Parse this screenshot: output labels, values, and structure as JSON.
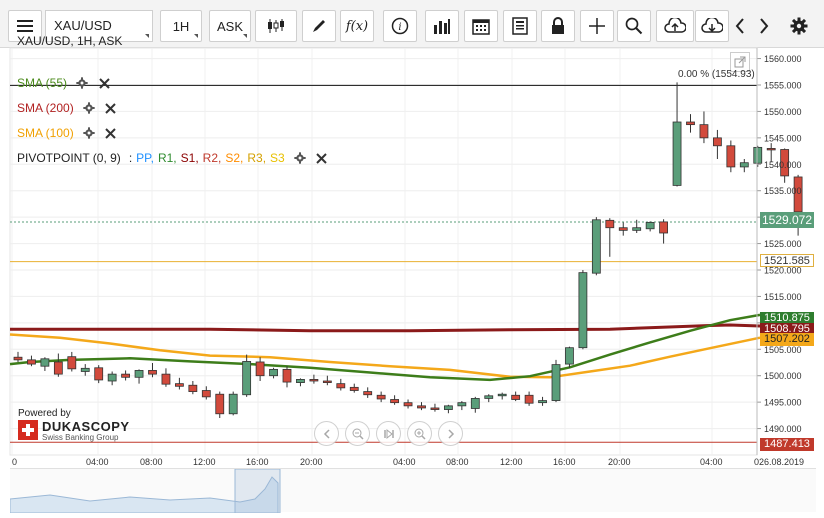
{
  "toolbar": {
    "symbol": "XAU/USD",
    "timeframe": "1H",
    "price_side": "ASK"
  },
  "chart_title": "XAU/USD, 1H, ASK",
  "indicators": [
    {
      "label": "SMA (55)",
      "color": "#4a8a1a"
    },
    {
      "label": "SMA (200)",
      "color": "#b22222"
    },
    {
      "label": "SMA (100)",
      "color": "#f0a000"
    }
  ],
  "pivot": {
    "label": "PIVOTPOINT (0, 9)",
    "sep": ":",
    "levels": [
      {
        "t": "PP",
        "c": "#1e90ff"
      },
      {
        "t": "R1",
        "c": "#2e8b2e"
      },
      {
        "t": "S1",
        "c": "#8b0000"
      },
      {
        "t": "R2",
        "c": "#c0392b"
      },
      {
        "t": "S2",
        "c": "#ff8c00"
      },
      {
        "t": "R3",
        "c": "#d4a000"
      },
      {
        "t": "S3",
        "c": "#e8c000"
      }
    ]
  },
  "annotation": "0.00 % (1554.93)",
  "price_labels": {
    "current": "1529.072",
    "pivot": "1521.585",
    "sma55": "1510.875",
    "sma200": "1508.795",
    "sma100": "1507.202",
    "low": "1487.413"
  },
  "branding": {
    "powered": "Powered by",
    "name": "DUKASCOPY",
    "sub": "Swiss Banking Group"
  },
  "chart_data": {
    "type": "candlestick",
    "title": "XAU/USD, 1H, ASK",
    "ylim": [
      1485,
      1562
    ],
    "yticks": [
      "1560.000",
      "1555.000",
      "1550.000",
      "1545.000",
      "1540.000",
      "1535.000",
      "1530.000",
      "1525.000",
      "1520.000",
      "1515.000",
      "1510.000",
      "1505.000",
      "1500.000",
      "1495.000",
      "1490.000"
    ],
    "x_ticks": [
      "0",
      "04:00",
      "08:00",
      "12:00",
      "16:00",
      "20:00",
      "04:00",
      "08:00",
      "12:00",
      "16:00",
      "20:00",
      "04:00",
      "026.08.2019"
    ],
    "candles": [
      [
        1503.5,
        1504.5,
        1502.6,
        1503.0
      ],
      [
        1503.0,
        1503.8,
        1501.8,
        1502.2
      ],
      [
        1501.8,
        1503.5,
        1500.9,
        1503.2
      ],
      [
        1502.6,
        1504.2,
        1499.8,
        1500.3
      ],
      [
        1503.6,
        1504.5,
        1500.8,
        1501.3
      ],
      [
        1500.8,
        1502.2,
        1500.0,
        1501.4
      ],
      [
        1501.5,
        1502.0,
        1498.6,
        1499.2
      ],
      [
        1499.0,
        1500.8,
        1498.2,
        1500.3
      ],
      [
        1500.3,
        1501.0,
        1499.1,
        1499.7
      ],
      [
        1499.7,
        1501.2,
        1498.5,
        1501.0
      ],
      [
        1501.0,
        1502.4,
        1499.7,
        1500.3
      ],
      [
        1500.3,
        1501.4,
        1497.9,
        1498.4
      ],
      [
        1498.5,
        1499.6,
        1497.4,
        1498.0
      ],
      [
        1498.2,
        1499.0,
        1496.5,
        1497.0
      ],
      [
        1497.2,
        1498.0,
        1495.5,
        1496.0
      ],
      [
        1496.5,
        1497.0,
        1492.0,
        1492.8
      ],
      [
        1492.8,
        1497.0,
        1492.5,
        1496.5
      ],
      [
        1496.4,
        1504.0,
        1496.0,
        1502.7
      ],
      [
        1502.6,
        1503.5,
        1499.0,
        1500.0
      ],
      [
        1500.0,
        1501.5,
        1499.5,
        1501.2
      ],
      [
        1501.2,
        1501.8,
        1497.8,
        1498.8
      ],
      [
        1498.7,
        1499.5,
        1498.0,
        1499.3
      ],
      [
        1499.3,
        1500.2,
        1498.5,
        1499.0
      ],
      [
        1499.0,
        1500.0,
        1498.2,
        1498.7
      ],
      [
        1498.5,
        1499.4,
        1497.2,
        1497.7
      ],
      [
        1497.8,
        1498.5,
        1496.8,
        1497.2
      ],
      [
        1497.0,
        1497.8,
        1495.8,
        1496.4
      ],
      [
        1496.3,
        1497.0,
        1495.0,
        1495.6
      ],
      [
        1495.5,
        1496.3,
        1494.5,
        1494.9
      ],
      [
        1494.9,
        1495.5,
        1493.8,
        1494.3
      ],
      [
        1494.3,
        1495.0,
        1493.5,
        1493.9
      ],
      [
        1493.9,
        1494.7,
        1493.2,
        1493.6
      ],
      [
        1493.6,
        1494.5,
        1492.9,
        1494.3
      ],
      [
        1494.3,
        1495.2,
        1493.5,
        1494.9
      ],
      [
        1493.8,
        1496.0,
        1493.0,
        1495.7
      ],
      [
        1495.7,
        1496.5,
        1495.0,
        1496.2
      ],
      [
        1496.2,
        1496.8,
        1495.5,
        1496.5
      ],
      [
        1496.3,
        1497.0,
        1495.2,
        1495.5
      ],
      [
        1496.3,
        1497.0,
        1494.3,
        1494.8
      ],
      [
        1494.9,
        1496.0,
        1494.3,
        1495.3
      ],
      [
        1495.3,
        1503.0,
        1495.0,
        1502.1
      ],
      [
        1502.2,
        1505.5,
        1501.5,
        1505.3
      ],
      [
        1505.3,
        1520.0,
        1505.0,
        1519.5
      ],
      [
        1519.4,
        1530.0,
        1519.0,
        1529.5
      ],
      [
        1529.4,
        1529.8,
        1522.5,
        1528.0
      ],
      [
        1528.0,
        1529.0,
        1526.5,
        1527.5
      ],
      [
        1527.5,
        1529.5,
        1527.0,
        1528.0
      ],
      [
        1527.8,
        1529.2,
        1527.3,
        1529.0
      ],
      [
        1529.1,
        1529.6,
        1525.0,
        1527.0
      ],
      [
        1536.0,
        1555.5,
        1535.8,
        1548.0
      ],
      [
        1548.0,
        1549.5,
        1546.0,
        1547.5
      ],
      [
        1547.5,
        1550.0,
        1544.0,
        1545.0
      ],
      [
        1545.0,
        1546.5,
        1541.0,
        1543.5
      ],
      [
        1543.5,
        1544.5,
        1538.5,
        1539.5
      ],
      [
        1539.5,
        1541.0,
        1538.5,
        1540.3
      ],
      [
        1540.2,
        1543.5,
        1539.5,
        1543.2
      ],
      [
        1543.0,
        1544.0,
        1540.5,
        1542.8
      ],
      [
        1542.8,
        1543.0,
        1536.5,
        1537.8
      ],
      [
        1537.6,
        1538.0,
        1526.5,
        1531.0
      ]
    ],
    "sma55": [
      [
        0,
        1502.2
      ],
      [
        20,
        1502.6
      ],
      [
        60,
        1503.0
      ],
      [
        120,
        1503.3
      ],
      [
        180,
        1502.7
      ],
      [
        240,
        1502.2
      ],
      [
        300,
        1501.5
      ],
      [
        360,
        1500.6
      ],
      [
        420,
        1499.7
      ],
      [
        480,
        1499.2
      ],
      [
        520,
        1499.9
      ],
      [
        560,
        1501.6
      ],
      [
        600,
        1504.0
      ],
      [
        640,
        1506.3
      ],
      [
        680,
        1508.5
      ],
      [
        720,
        1510.5
      ],
      [
        750,
        1511.5
      ]
    ],
    "sma200": [
      [
        0,
        1508.8
      ],
      [
        100,
        1508.8
      ],
      [
        200,
        1508.8
      ],
      [
        300,
        1508.5
      ],
      [
        400,
        1508.5
      ],
      [
        500,
        1508.7
      ],
      [
        600,
        1508.8
      ],
      [
        700,
        1509.5
      ],
      [
        720,
        1509.6
      ],
      [
        750,
        1509.4
      ]
    ],
    "sma100": [
      [
        0,
        1507.8
      ],
      [
        50,
        1507.2
      ],
      [
        100,
        1506.1
      ],
      [
        150,
        1504.8
      ],
      [
        200,
        1503.8
      ],
      [
        260,
        1503.5
      ],
      [
        320,
        1502.6
      ],
      [
        380,
        1501.8
      ],
      [
        440,
        1501.1
      ],
      [
        500,
        1499.8
      ],
      [
        540,
        1499.7
      ],
      [
        580,
        1500.8
      ],
      [
        620,
        1501.9
      ],
      [
        660,
        1503.6
      ],
      [
        700,
        1505.2
      ],
      [
        750,
        1507.2
      ]
    ],
    "pivot_level": 1521.585,
    "low_level": 1487.413,
    "annotation_level": 1554.93,
    "current_level": 1529.072
  }
}
